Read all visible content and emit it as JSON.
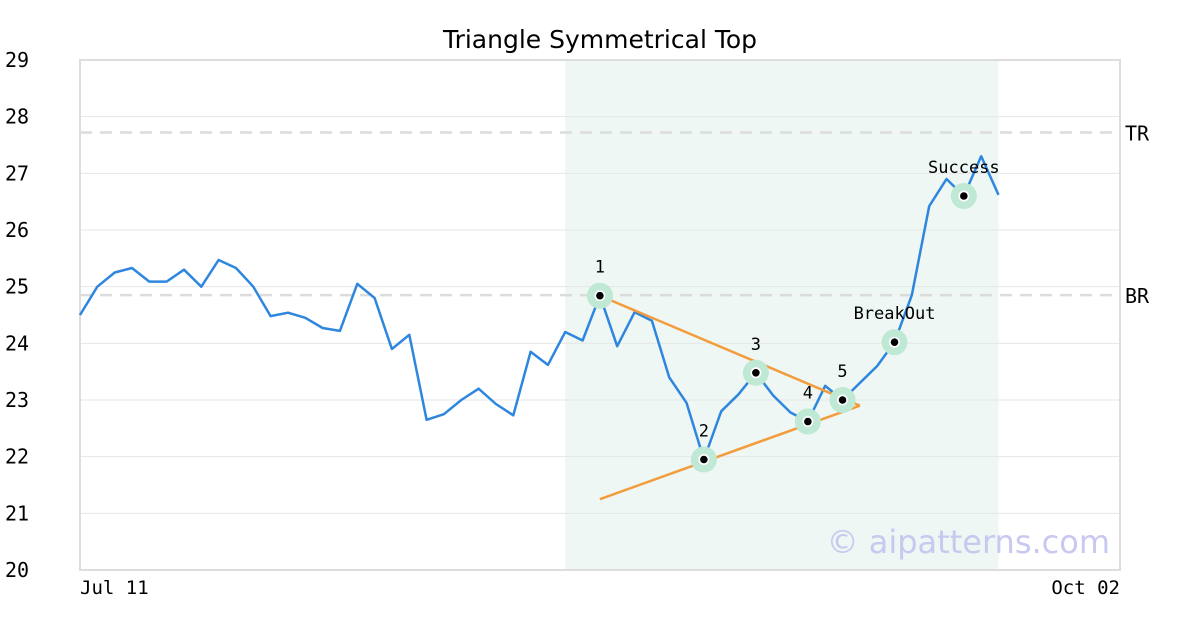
{
  "chart_data": {
    "type": "line",
    "title": "Triangle Symmetrical Top",
    "xlabel": "",
    "ylabel": "",
    "ylim": [
      20,
      29
    ],
    "yticks": [
      20,
      21,
      22,
      23,
      24,
      25,
      26,
      27,
      28,
      29
    ],
    "xtick_labels": [
      "Jul 11",
      "Oct 02"
    ],
    "grid": true,
    "series": [
      {
        "color": "#2e86de",
        "values": [
          24.5,
          25.0,
          25.25,
          25.33,
          25.09,
          25.09,
          25.3,
          25.0,
          25.47,
          25.33,
          25.0,
          24.48,
          24.54,
          24.45,
          24.27,
          24.22,
          25.05,
          24.8,
          23.9,
          24.15,
          22.65,
          22.75,
          23.0,
          23.2,
          22.93,
          22.73,
          23.85,
          23.62,
          24.2,
          24.05,
          24.84,
          23.95,
          24.55,
          24.4,
          23.4,
          22.95,
          21.95,
          22.8,
          23.1,
          23.48,
          23.08,
          22.78,
          22.62,
          23.25,
          23.0,
          23.3,
          23.6,
          24.02,
          24.85,
          26.42,
          26.9,
          26.6,
          27.3,
          26.62
        ]
      }
    ],
    "highlight_region": {
      "x_start": 28,
      "x_end": 53,
      "color": "#eef7f3"
    },
    "reference_lines": [
      {
        "label": "TR",
        "y": 27.72
      },
      {
        "label": "BR",
        "y": 24.85
      }
    ],
    "pattern_points": [
      {
        "label": "1",
        "x": 30,
        "y": 24.84
      },
      {
        "label": "2",
        "x": 36,
        "y": 21.95
      },
      {
        "label": "3",
        "x": 39,
        "y": 23.48
      },
      {
        "label": "4",
        "x": 42,
        "y": 22.62
      },
      {
        "label": "5",
        "x": 44,
        "y": 23.0
      },
      {
        "label": "BreakOut",
        "x": 47,
        "y": 24.02
      },
      {
        "label": "Success",
        "x": 51,
        "y": 26.6
      }
    ],
    "trend_lines": [
      {
        "color": "#f39c3c",
        "x1": 30,
        "y1": 24.84,
        "x2": 45,
        "y2": 22.9
      },
      {
        "color": "#f39c3c",
        "x1": 30,
        "y1": 21.25,
        "x2": 45,
        "y2": 22.9
      }
    ],
    "watermark": "© aipatterns.com",
    "colors": {
      "line": "#2e86de",
      "trend": "#f39c3c",
      "marker_halo": "#bfe8d5",
      "grid": "#e6e6e6",
      "reference": "#dcdcdc",
      "frame": "#dddddd"
    }
  }
}
